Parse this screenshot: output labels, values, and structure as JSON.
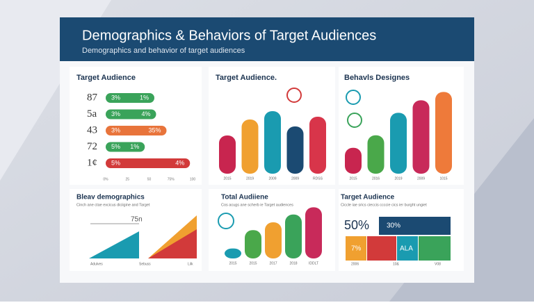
{
  "header": {
    "title": "Demographics & Behaviors of Target Audiences",
    "subtitle": "Demographics and behavior of target audiences"
  },
  "panels": [
    {
      "type": "hbar",
      "title": "Target Audience",
      "rows": [
        {
          "label": "87",
          "left": "3%",
          "right": "1%",
          "value": 56,
          "color": "#3aa35a"
        },
        {
          "label": "5a",
          "left": "3%",
          "right": "4%",
          "value": 58,
          "color": "#3aa35a"
        },
        {
          "label": "43",
          "left": "3%",
          "right": "35%",
          "value": 70,
          "color": "#e8743b"
        },
        {
          "label": "72",
          "left": "5%",
          "right": "1%",
          "value": 45,
          "color": "#3aa35a"
        },
        {
          "label": "1¢",
          "left": "5%",
          "right": "4%",
          "value": 97,
          "color": "#d23a3a"
        }
      ],
      "axis": [
        "0%",
        "25",
        "50",
        "75%",
        "100"
      ]
    },
    {
      "type": "vbar",
      "title": "Target Audience.",
      "categories": [
        "2015",
        "2019",
        "2009",
        "2009",
        "RDSS"
      ],
      "values": [
        55,
        78,
        90,
        68,
        82
      ],
      "colors": [
        "#c8254f",
        "#f0a030",
        "#1a9bb0",
        "#1b4a72",
        "#d8354a"
      ]
    },
    {
      "type": "vbar",
      "title": "Behavls Designes",
      "categories": [
        "2015",
        "2016",
        "2019",
        "2009",
        "1015"
      ],
      "values": [
        31,
        46,
        73,
        88,
        98
      ],
      "colors": [
        "#c8254f",
        "#4aa84a",
        "#1a9bb0",
        "#c82a5a",
        "#ee7a3a"
      ]
    },
    {
      "type": "area",
      "title": "Bleav demographics",
      "subtitle": "Cinch ane ctae excicus diciigine and Target",
      "note": "75n",
      "categories": [
        "Adulves",
        "Sebuss",
        "Lilk"
      ]
    },
    {
      "type": "vbar",
      "title": "Total Audiiene",
      "subtitle": "Cos acugs ane scherb ie Target audiences",
      "categories": [
        "2015",
        "2015",
        "2017",
        "2018",
        "IDDLT"
      ],
      "values": [
        18,
        51,
        65,
        79,
        92
      ],
      "colors": [
        "#1a9bb0",
        "#4aa84a",
        "#f0a030",
        "#3aa35a",
        "#c82a5a"
      ]
    },
    {
      "type": "grid",
      "title": "Target Audience",
      "subtitle": "Ciccle iae srics cieccis ccccie cics ier burght ungiet",
      "big": "50%",
      "cells": [
        "30%",
        "7%",
        "ALA"
      ],
      "categories": [
        "2006",
        "10&",
        "V08"
      ]
    }
  ]
}
